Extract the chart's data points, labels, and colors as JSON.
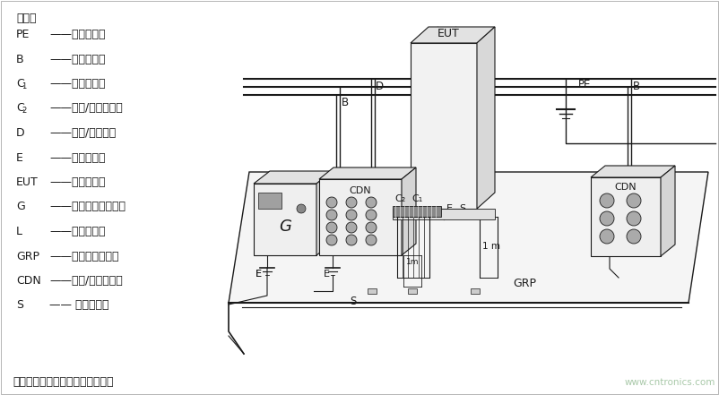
{
  "bg_color": "#ffffff",
  "lc": "#1a1a1a",
  "watermark": "www.cntronics.com",
  "watermark_color": "#a8c8a8",
  "legend_title": "说明：",
  "legend": [
    {
      "key": "PE",
      "ksub": "",
      "desc": "——保护接地；"
    },
    {
      "key": "B",
      "ksub": "",
      "desc": "——供电电源；"
    },
    {
      "key": "C",
      "ksub": "1",
      "desc": "——电源端口；"
    },
    {
      "key": "C",
      "ksub": "2",
      "desc": "——输入/输出端口；"
    },
    {
      "key": "D",
      "ksub": "",
      "desc": "——信号/控制源；"
    },
    {
      "key": "E",
      "ksub": "",
      "desc": "——接地连接；"
    },
    {
      "key": "EUT",
      "ksub": "",
      "desc": "——受试设备；"
    },
    {
      "key": "G",
      "ksub": "",
      "desc": "——试验信号发生器；"
    },
    {
      "key": "L",
      "ksub": "",
      "desc": "——通讯端口；"
    },
    {
      "key": "GRP",
      "ksub": "",
      "desc": "——接地参考平面；"
    },
    {
      "key": "CDN",
      "ksub": "",
      "desc": "——耦合/去耦网络；"
    },
    {
      "key": "S",
      "ksub": "",
      "desc": "—— 绵缘支座。"
    }
  ],
  "note": "注：接地连线应按实际尽可能短。"
}
